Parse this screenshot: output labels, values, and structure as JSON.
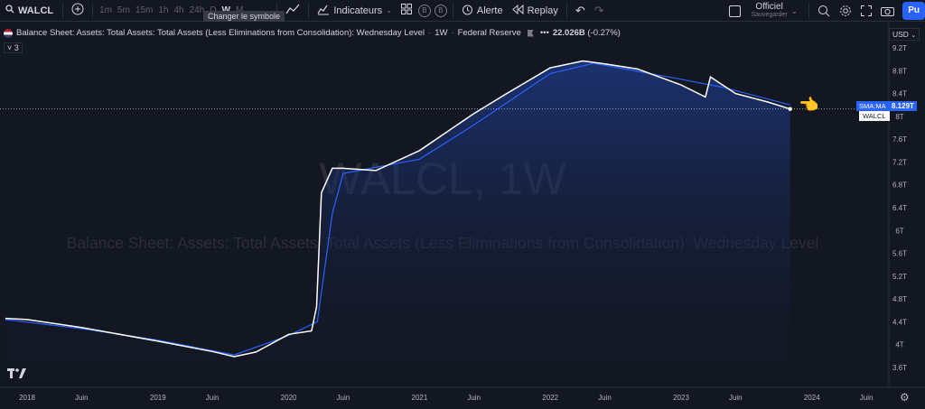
{
  "toolbar": {
    "symbol": "WALCL",
    "intervals": [
      "1m",
      "5m",
      "15m",
      "1h",
      "4h",
      "24h",
      "D",
      "W",
      "M"
    ],
    "active_interval": "W",
    "indicators_label": "Indicateurs",
    "alert_label": "Alerte",
    "replay_label": "Replay",
    "official_label": "Officiel",
    "save_label": "Sauvegarder",
    "publish_label": "Pu",
    "tooltip": "Changer le symbole",
    "circle_b": "B"
  },
  "legend": {
    "title": "Balance Sheet: Assets: Total Assets: Total Assets (Less Eliminations from Consolidation): Wednesday Level",
    "interval": "1W",
    "source": "Federal Reserve",
    "dots": "•••",
    "change": "22.026B",
    "change_pct": "(-0.27%)",
    "collapse": "˅ 3"
  },
  "price_scale": {
    "currency": "USD",
    "labels": [
      "9.2T",
      "8.8T",
      "8.4T",
      "8T",
      "7.6T",
      "7.2T",
      "6.8T",
      "6.4T",
      "6T",
      "5.6T",
      "5.2T",
      "4.8T",
      "4.4T",
      "4T",
      "3.6T"
    ],
    "last_value": "8.129T",
    "sma_label": "SMA:MA",
    "series_label": "WALCL"
  },
  "time_scale": {
    "labels": [
      "2018",
      "Juin",
      "2019",
      "Juin",
      "2020",
      "Juin",
      "2021",
      "Juin",
      "2022",
      "Juin",
      "2023",
      "Juin",
      "2024",
      "Juin"
    ]
  },
  "watermark": {
    "symbol": "WALCL, 1W",
    "description": "Balance Sheet: Assets: Total Assets: Total Assets (Less Eliminations from Consolidation): Wednesday Level"
  },
  "colors": {
    "background": "#131722",
    "series_line": "#ffffff",
    "sma_line": "#2962ff",
    "area_top": "#1f3a8a",
    "accent": "#2962ff"
  },
  "chart_data": {
    "type": "area",
    "series": [
      {
        "name": "WALCL",
        "x": [
          "2017-11",
          "2018-01",
          "2018-06",
          "2019-01",
          "2019-06",
          "2019-08",
          "2019-10",
          "2020-01",
          "2020-03-04",
          "2020-03-18",
          "2020-04",
          "2020-05",
          "2020-06",
          "2020-09",
          "2021-01",
          "2021-06",
          "2021-09",
          "2022-01",
          "2022-04",
          "2022-06",
          "2022-09",
          "2023-01",
          "2023-03-08",
          "2023-03-22",
          "2023-06",
          "2023-09",
          "2023-11"
        ],
        "values": [
          4.46,
          4.44,
          4.3,
          4.06,
          3.88,
          3.79,
          3.87,
          4.18,
          4.24,
          4.67,
          6.66,
          7.09,
          7.09,
          7.05,
          7.4,
          8.05,
          8.4,
          8.85,
          8.97,
          8.92,
          8.83,
          8.55,
          8.34,
          8.69,
          8.4,
          8.25,
          8.129
        ]
      },
      {
        "name": "SMA:MA",
        "x": [
          "2017-11",
          "2018-06",
          "2019-01",
          "2019-08",
          "2020-01",
          "2020-03-20",
          "2020-05",
          "2020-06",
          "2021-01",
          "2021-06",
          "2022-01",
          "2022-05",
          "2023-01",
          "2023-05",
          "2023-11"
        ],
        "values": [
          4.44,
          4.28,
          4.08,
          3.82,
          4.16,
          4.4,
          6.3,
          7.0,
          7.25,
          7.85,
          8.75,
          8.93,
          8.65,
          8.5,
          8.2
        ]
      }
    ],
    "ylim": [
      3.5,
      9.35
    ],
    "y_unit": "T",
    "scale": "linear",
    "grid": false,
    "legend": "top-left"
  }
}
